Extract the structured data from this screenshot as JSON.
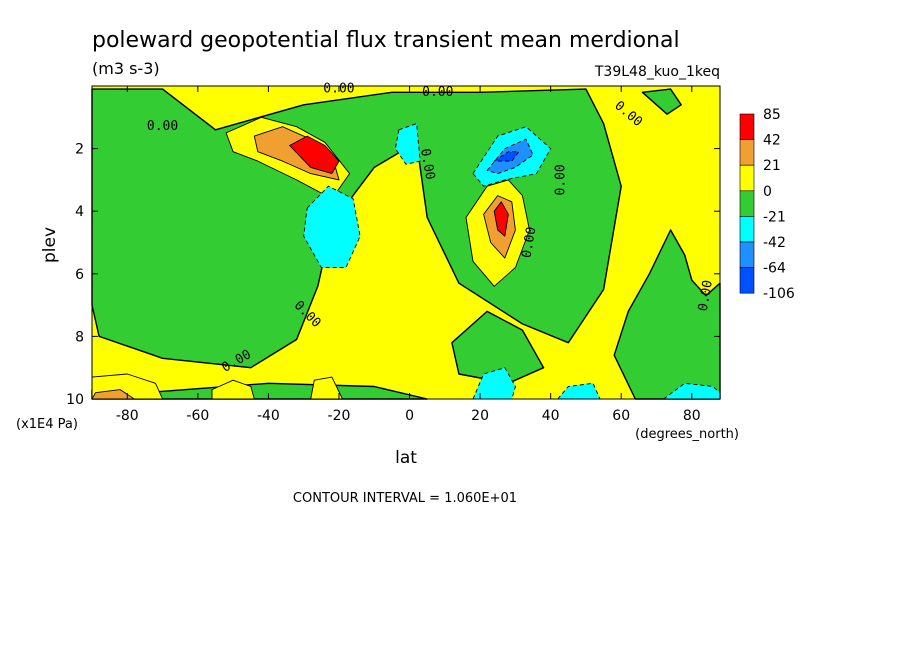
{
  "chart_data": {
    "type": "heatmap",
    "title": "poleward geopotential flux transient mean merdional",
    "units": "(m3 s-3)",
    "run_label": "T39L48_kuo_1keq",
    "xlabel": "lat",
    "x_units": "(degrees_north)",
    "ylabel": "plev",
    "y_units": "(x1E4 Pa)",
    "footer": "CONTOUR INTERVAL = 1.060E+01",
    "xlim": [
      -90,
      88
    ],
    "ylim": [
      10,
      0
    ],
    "x_ticks": [
      -80,
      -60,
      -40,
      -20,
      0,
      20,
      40,
      60,
      80
    ],
    "x_tick_labels": [
      "-80",
      "-60",
      "-40",
      "-20",
      "0",
      "20",
      "40",
      "60",
      "80"
    ],
    "y_ticks": [
      2,
      4,
      6,
      8,
      10
    ],
    "y_tick_labels": [
      "2",
      "4",
      "6",
      "8",
      "10"
    ],
    "legend_placement": "right",
    "legend": [
      {
        "label": "85",
        "color": "#ff0000"
      },
      {
        "label": "42",
        "color": "#f0a030"
      },
      {
        "label": "21",
        "color": "#ffff00"
      },
      {
        "label": "0",
        "color": "#33cc33"
      },
      {
        "label": "-21",
        "color": "#00ffff"
      },
      {
        "label": "-42",
        "color": "#1e90ff"
      },
      {
        "label": "-64",
        "color": "#0050ff"
      },
      {
        "label": "-106",
        "color": ""
      }
    ],
    "contour_labels": [
      {
        "text": "0.00",
        "lat": -70,
        "plev": 1.3,
        "angle": 0
      },
      {
        "text": "0.00",
        "lat": -20,
        "plev": 0.1,
        "angle": 0
      },
      {
        "text": "0.00",
        "lat": 8,
        "plev": 0.2,
        "angle": 0
      },
      {
        "text": "0.00",
        "lat": 5,
        "plev": 2.5,
        "angle": 80
      },
      {
        "text": "0.00",
        "lat": 43,
        "plev": 3.0,
        "angle": -90
      },
      {
        "text": "0.00",
        "lat": 34,
        "plev": 5.0,
        "angle": -80
      },
      {
        "text": "0.00",
        "lat": 62,
        "plev": 0.9,
        "angle": 40
      },
      {
        "text": "0.00",
        "lat": -29,
        "plev": 7.3,
        "angle": 45
      },
      {
        "text": "0.00",
        "lat": -49,
        "plev": 8.8,
        "angle": -30
      },
      {
        "text": "0.00",
        "lat": 84,
        "plev": 6.7,
        "angle": -80
      }
    ],
    "regions": [
      {
        "level": "0",
        "points": [
          [
            -90,
            0.1
          ],
          [
            -70,
            0.1
          ],
          [
            -55,
            1.4
          ],
          [
            -30,
            0.6
          ],
          [
            -5,
            0.2
          ],
          [
            20,
            0.2
          ],
          [
            50,
            0.1
          ],
          [
            55,
            1.2
          ],
          [
            60,
            3.2
          ],
          [
            55,
            6.5
          ],
          [
            45,
            8.2
          ],
          [
            32,
            7.6
          ],
          [
            14,
            6.3
          ],
          [
            5,
            4.2
          ],
          [
            2,
            1.8
          ],
          [
            -10,
            2.6
          ],
          [
            -22,
            4.4
          ],
          [
            -26,
            6.4
          ],
          [
            -32,
            8.1
          ],
          [
            -45,
            9.0
          ],
          [
            -70,
            8.7
          ],
          [
            -88,
            8.0
          ],
          [
            -90,
            7.0
          ]
        ]
      },
      {
        "level": "0",
        "points": [
          [
            58,
            8.6
          ],
          [
            62,
            7.2
          ],
          [
            68,
            6.0
          ],
          [
            74,
            4.6
          ],
          [
            78,
            5.4
          ],
          [
            80,
            6.2
          ],
          [
            84,
            6.7
          ],
          [
            88,
            6.3
          ],
          [
            88,
            10
          ],
          [
            64,
            10
          ]
        ]
      },
      {
        "level": "0",
        "points": [
          [
            12,
            8.2
          ],
          [
            22,
            7.2
          ],
          [
            32,
            7.8
          ],
          [
            38,
            9.0
          ],
          [
            28,
            9.5
          ],
          [
            14,
            9.2
          ]
        ]
      },
      {
        "level": "0",
        "points": [
          [
            66,
            0.2
          ],
          [
            73,
            0.9
          ],
          [
            77,
            0.6
          ],
          [
            74,
            0.1
          ]
        ]
      },
      {
        "level": "0",
        "points": [
          [
            -75,
            9.8
          ],
          [
            -40,
            9.5
          ],
          [
            -10,
            9.6
          ],
          [
            5,
            10
          ],
          [
            -90,
            10
          ],
          [
            -90,
            9.7
          ]
        ]
      },
      {
        "level": "21",
        "points": [
          [
            -52,
            1.5
          ],
          [
            -42,
            1.0
          ],
          [
            -32,
            1.3
          ],
          [
            -24,
            1.8
          ],
          [
            -17,
            2.8
          ],
          [
            -22,
            3.6
          ],
          [
            -32,
            3.0
          ],
          [
            -43,
            2.4
          ],
          [
            -50,
            2.1
          ]
        ]
      },
      {
        "level": "21",
        "points": [
          [
            16,
            4.2
          ],
          [
            22,
            3.2
          ],
          [
            28,
            3.0
          ],
          [
            32,
            3.5
          ],
          [
            34,
            4.6
          ],
          [
            30,
            5.8
          ],
          [
            24,
            6.4
          ],
          [
            18,
            5.6
          ]
        ]
      },
      {
        "level": "21",
        "points": [
          [
            -90,
            9.3
          ],
          [
            -80,
            9.2
          ],
          [
            -72,
            9.5
          ],
          [
            -70,
            10
          ],
          [
            -90,
            10
          ]
        ]
      },
      {
        "level": "21",
        "points": [
          [
            -56,
            9.7
          ],
          [
            -50,
            9.4
          ],
          [
            -45,
            9.6
          ],
          [
            -44,
            10
          ],
          [
            -56,
            10
          ]
        ]
      },
      {
        "level": "21",
        "points": [
          [
            -27,
            9.4
          ],
          [
            -22,
            9.3
          ],
          [
            -19,
            10
          ],
          [
            -28,
            10
          ]
        ]
      },
      {
        "level": "42",
        "points": [
          [
            -44,
            1.6
          ],
          [
            -36,
            1.3
          ],
          [
            -28,
            1.7
          ],
          [
            -22,
            2.2
          ],
          [
            -20,
            3.0
          ],
          [
            -28,
            2.8
          ],
          [
            -36,
            2.4
          ],
          [
            -43,
            2.1
          ]
        ]
      },
      {
        "level": "42",
        "points": [
          [
            21,
            4.1
          ],
          [
            25,
            3.5
          ],
          [
            29,
            3.7
          ],
          [
            30,
            4.6
          ],
          [
            27,
            5.5
          ],
          [
            23,
            5.0
          ]
        ]
      },
      {
        "level": "42",
        "points": [
          [
            -89,
            9.8
          ],
          [
            -82,
            9.7
          ],
          [
            -78,
            10
          ],
          [
            -90,
            10
          ]
        ]
      },
      {
        "level": "85",
        "points": [
          [
            -34,
            1.9
          ],
          [
            -29,
            1.6
          ],
          [
            -24,
            1.9
          ],
          [
            -20,
            2.4
          ],
          [
            -22,
            2.8
          ],
          [
            -28,
            2.6
          ]
        ]
      },
      {
        "level": "85",
        "points": [
          [
            24,
            4.0
          ],
          [
            26,
            3.7
          ],
          [
            28,
            4.1
          ],
          [
            27,
            4.8
          ],
          [
            25,
            4.6
          ]
        ]
      },
      {
        "level": "-21",
        "points": [
          [
            -29,
            3.9
          ],
          [
            -23,
            3.2
          ],
          [
            -16,
            3.6
          ],
          [
            -14,
            4.8
          ],
          [
            -18,
            5.8
          ],
          [
            -25,
            5.8
          ],
          [
            -30,
            4.8
          ]
        ]
      },
      {
        "level": "-21",
        "points": [
          [
            18,
            2.8
          ],
          [
            25,
            1.6
          ],
          [
            33,
            1.3
          ],
          [
            40,
            2.0
          ],
          [
            36,
            2.8
          ],
          [
            27,
            3.0
          ],
          [
            21,
            3.2
          ]
        ]
      },
      {
        "level": "-21",
        "points": [
          [
            -3,
            1.4
          ],
          [
            2,
            1.2
          ],
          [
            3,
            2.4
          ],
          [
            -1,
            2.5
          ],
          [
            -4,
            2.0
          ]
        ]
      },
      {
        "level": "-21",
        "points": [
          [
            18,
            10
          ],
          [
            21,
            9.2
          ],
          [
            27,
            9.0
          ],
          [
            30,
            9.6
          ],
          [
            29,
            10
          ]
        ]
      },
      {
        "level": "-21",
        "points": [
          [
            42,
            10
          ],
          [
            45,
            9.6
          ],
          [
            52,
            9.5
          ],
          [
            54,
            10
          ]
        ]
      },
      {
        "level": "-21",
        "points": [
          [
            72,
            10
          ],
          [
            78,
            9.5
          ],
          [
            86,
            9.6
          ],
          [
            88,
            9.8
          ],
          [
            88,
            10
          ]
        ]
      },
      {
        "level": "-42",
        "points": [
          [
            22,
            2.7
          ],
          [
            27,
            2.0
          ],
          [
            33,
            1.7
          ],
          [
            35,
            2.2
          ],
          [
            30,
            2.6
          ],
          [
            25,
            2.8
          ]
        ]
      },
      {
        "level": "-64",
        "points": [
          [
            24,
            2.4
          ],
          [
            28,
            2.1
          ],
          [
            31,
            2.1
          ],
          [
            29,
            2.4
          ]
        ]
      }
    ]
  }
}
